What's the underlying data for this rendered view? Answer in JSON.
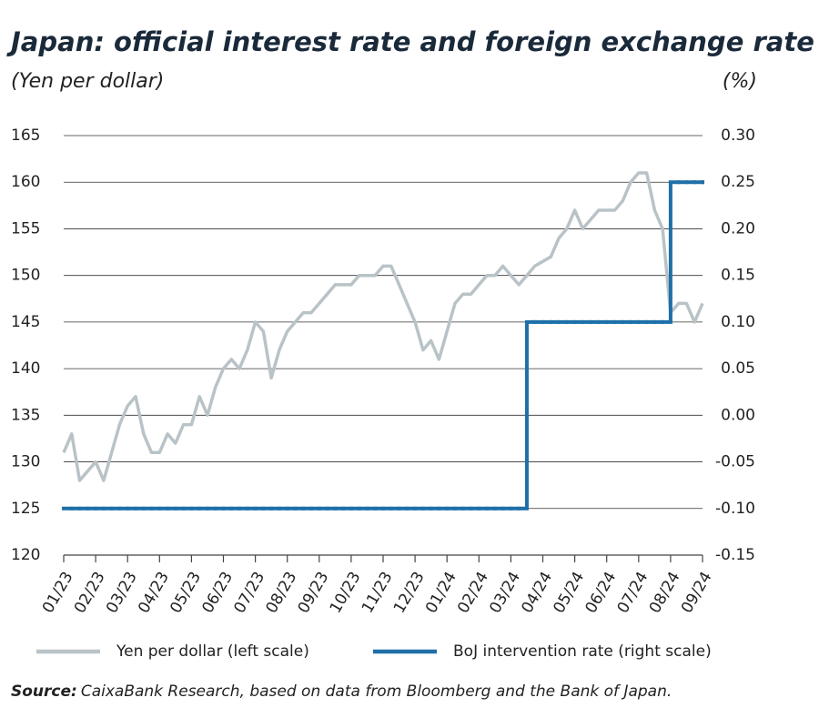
{
  "chart_data": {
    "type": "line",
    "title": "Japan: official interest rate and foreign exchange rate",
    "y_label": "(Yen per dollar)",
    "y2_label": "(%)",
    "source_label": "Source:",
    "source": "CaixaBank Research, based on data from Bloomberg and the Bank of Japan.",
    "categories": [
      "01/23",
      null,
      null,
      null,
      "02/23",
      null,
      null,
      null,
      "03/23",
      null,
      null,
      null,
      "04/23",
      null,
      null,
      null,
      "05/23",
      null,
      null,
      null,
      "06/23",
      null,
      null,
      null,
      "07/23",
      null,
      null,
      null,
      "08/23",
      null,
      null,
      null,
      "09/23",
      null,
      null,
      null,
      "10/23",
      null,
      null,
      null,
      "11/23",
      null,
      null,
      null,
      "12/23",
      null,
      null,
      null,
      "01/24",
      null,
      null,
      null,
      "02/24",
      null,
      null,
      null,
      "03/24",
      null,
      null,
      null,
      "04/24",
      null,
      null,
      null,
      "05/24",
      null,
      null,
      null,
      "06/24",
      null,
      null,
      null,
      "07/24",
      null,
      null,
      null,
      "08/24",
      null,
      null,
      null,
      "09/24"
    ],
    "series": [
      {
        "name": "Yen per dollar (left scale)",
        "color": "#b9c3c7",
        "axis": "y",
        "step": false,
        "values": [
          131,
          133,
          128,
          129,
          130,
          128,
          131,
          134,
          136,
          137,
          133,
          131,
          131,
          133,
          132,
          134,
          134,
          137,
          135,
          138,
          140,
          141,
          140,
          142,
          145,
          144,
          139,
          142,
          144,
          145,
          146,
          146,
          147,
          148,
          149,
          149,
          149,
          150,
          150,
          150,
          151,
          151,
          149,
          147,
          145,
          142,
          143,
          141,
          144,
          147,
          148,
          148,
          149,
          150,
          150,
          151,
          150,
          149,
          150,
          151,
          151.5,
          152,
          154,
          155,
          157,
          155,
          156,
          157,
          157,
          157,
          158,
          160,
          161,
          161,
          157,
          155,
          146,
          147,
          147,
          145,
          147
        ]
      },
      {
        "name": "BoJ intervention rate (right scale)",
        "color": "#1f6fa8",
        "axis": "y2",
        "step": true,
        "values": [
          -0.1,
          -0.1,
          -0.1,
          -0.1,
          -0.1,
          -0.1,
          -0.1,
          -0.1,
          -0.1,
          -0.1,
          -0.1,
          -0.1,
          -0.1,
          -0.1,
          -0.1,
          -0.1,
          -0.1,
          -0.1,
          -0.1,
          -0.1,
          -0.1,
          -0.1,
          -0.1,
          -0.1,
          -0.1,
          -0.1,
          -0.1,
          -0.1,
          -0.1,
          -0.1,
          -0.1,
          -0.1,
          -0.1,
          -0.1,
          -0.1,
          -0.1,
          -0.1,
          -0.1,
          -0.1,
          -0.1,
          -0.1,
          -0.1,
          -0.1,
          -0.1,
          -0.1,
          -0.1,
          -0.1,
          -0.1,
          -0.1,
          -0.1,
          -0.1,
          -0.1,
          -0.1,
          -0.1,
          -0.1,
          -0.1,
          -0.1,
          -0.1,
          0.1,
          0.1,
          0.1,
          0.1,
          0.1,
          0.1,
          0.1,
          0.1,
          0.1,
          0.1,
          0.1,
          0.1,
          0.1,
          0.1,
          0.1,
          0.1,
          0.1,
          0.1,
          0.25,
          0.25,
          0.25,
          0.25,
          0.25
        ]
      }
    ],
    "ylim": [
      120,
      165
    ],
    "yticks": [
      120,
      125,
      130,
      135,
      140,
      145,
      150,
      155,
      160,
      165
    ],
    "y2lim": [
      -0.15,
      0.3
    ],
    "y2ticks": [
      -0.15,
      {
        "value": -0.1,
        "label": "-0.10"
      },
      -0.05,
      {
        "value": 0,
        "label": "0.00"
      },
      0.05,
      {
        "value": 0.1,
        "label": "0.10"
      },
      0.15,
      {
        "value": 0.2,
        "label": "0.20"
      },
      0.25,
      {
        "value": 0.3,
        "label": "0.30"
      }
    ],
    "grid": true
  }
}
